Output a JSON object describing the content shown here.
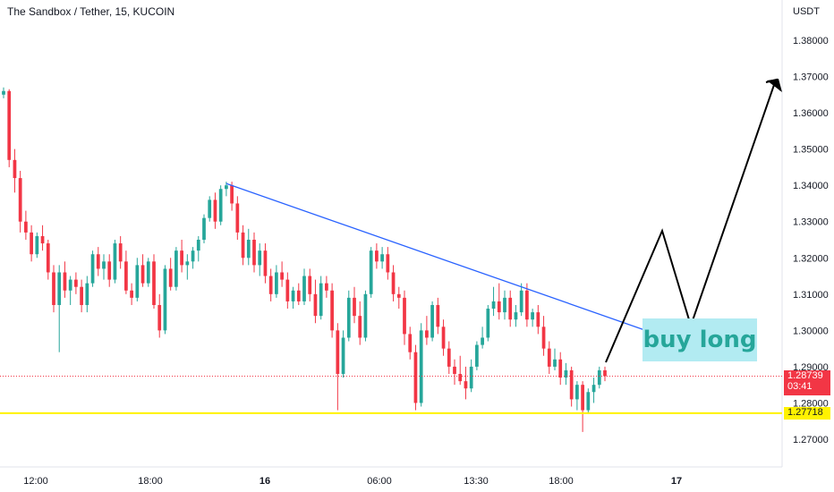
{
  "header": {
    "title": "The Sandbox / Tether, 15, KUCOIN"
  },
  "price_axis": {
    "currency": "USDT",
    "ticks": [
      "1.38000",
      "1.37000",
      "1.36000",
      "1.35000",
      "1.34000",
      "1.33000",
      "1.32000",
      "1.31000",
      "1.30000",
      "1.29000",
      "1.28000",
      "1.27000"
    ]
  },
  "time_axis": {
    "ticks": [
      "12:00",
      "18:00",
      "16",
      "06:00",
      "13:30",
      "18:00",
      "17"
    ]
  },
  "last_price": {
    "value": "1.28739",
    "countdown": "03:41"
  },
  "support_level": {
    "value": "1.27718"
  },
  "annotation": {
    "text": "buy long"
  },
  "colors": {
    "up": "#26a69a",
    "down": "#f23645",
    "trendline": "#2962ff",
    "support": "#fff200",
    "arrow": "#000000",
    "label_bg": "#b2ebf2"
  },
  "chart_data": {
    "type": "candlestick",
    "title": "The Sandbox / Tether, 15, KUCOIN",
    "ylabel": "USDT",
    "ylim": [
      1.265,
      1.389
    ],
    "candles": [
      [
        1.365,
        1.367,
        1.364,
        1.366
      ],
      [
        1.366,
        1.3665,
        1.345,
        1.347
      ],
      [
        1.347,
        1.35,
        1.338,
        1.342
      ],
      [
        1.342,
        1.344,
        1.327,
        1.33
      ],
      [
        1.33,
        1.333,
        1.325,
        1.327
      ],
      [
        1.327,
        1.329,
        1.319,
        1.321
      ],
      [
        1.321,
        1.327,
        1.32,
        1.326
      ],
      [
        1.326,
        1.329,
        1.322,
        1.324
      ],
      [
        1.324,
        1.325,
        1.314,
        1.316
      ],
      [
        1.316,
        1.318,
        1.305,
        1.307
      ],
      [
        1.307,
        1.318,
        1.294,
        1.316
      ],
      [
        1.316,
        1.319,
        1.309,
        1.311
      ],
      [
        1.311,
        1.315,
        1.307,
        1.314
      ],
      [
        1.314,
        1.316,
        1.31,
        1.312
      ],
      [
        1.312,
        1.314,
        1.305,
        1.307
      ],
      [
        1.307,
        1.315,
        1.305,
        1.313
      ],
      [
        1.313,
        1.322,
        1.312,
        1.321
      ],
      [
        1.321,
        1.323,
        1.315,
        1.317
      ],
      [
        1.317,
        1.321,
        1.314,
        1.319
      ],
      [
        1.319,
        1.321,
        1.312,
        1.314
      ],
      [
        1.314,
        1.325,
        1.313,
        1.324
      ],
      [
        1.324,
        1.326,
        1.317,
        1.319
      ],
      [
        1.319,
        1.322,
        1.31,
        1.311
      ],
      [
        1.311,
        1.313,
        1.307,
        1.309
      ],
      [
        1.309,
        1.32,
        1.308,
        1.318
      ],
      [
        1.318,
        1.321,
        1.312,
        1.313
      ],
      [
        1.313,
        1.32,
        1.312,
        1.319
      ],
      [
        1.319,
        1.321,
        1.306,
        1.307
      ],
      [
        1.307,
        1.31,
        1.298,
        1.3
      ],
      [
        1.3,
        1.318,
        1.299,
        1.317
      ],
      [
        1.317,
        1.32,
        1.311,
        1.312
      ],
      [
        1.312,
        1.323,
        1.311,
        1.322
      ],
      [
        1.322,
        1.325,
        1.316,
        1.318
      ],
      [
        1.318,
        1.321,
        1.314,
        1.319
      ],
      [
        1.319,
        1.323,
        1.317,
        1.322
      ],
      [
        1.322,
        1.326,
        1.319,
        1.325
      ],
      [
        1.325,
        1.332,
        1.324,
        1.331
      ],
      [
        1.331,
        1.337,
        1.33,
        1.336
      ],
      [
        1.336,
        1.338,
        1.328,
        1.33
      ],
      [
        1.33,
        1.34,
        1.329,
        1.339
      ],
      [
        1.339,
        1.341,
        1.337,
        1.34
      ],
      [
        1.34,
        1.341,
        1.333,
        1.335
      ],
      [
        1.335,
        1.337,
        1.325,
        1.327
      ],
      [
        1.327,
        1.329,
        1.318,
        1.32
      ],
      [
        1.32,
        1.328,
        1.318,
        1.325
      ],
      [
        1.325,
        1.327,
        1.316,
        1.318
      ],
      [
        1.318,
        1.324,
        1.315,
        1.322
      ],
      [
        1.322,
        1.324,
        1.313,
        1.315
      ],
      [
        1.315,
        1.317,
        1.308,
        1.31
      ],
      [
        1.31,
        1.318,
        1.309,
        1.316
      ],
      [
        1.316,
        1.319,
        1.312,
        1.314
      ],
      [
        1.314,
        1.316,
        1.306,
        1.308
      ],
      [
        1.308,
        1.312,
        1.306,
        1.311
      ],
      [
        1.311,
        1.313,
        1.307,
        1.308
      ],
      [
        1.308,
        1.317,
        1.307,
        1.315
      ],
      [
        1.315,
        1.317,
        1.308,
        1.31
      ],
      [
        1.31,
        1.314,
        1.302,
        1.304
      ],
      [
        1.304,
        1.315,
        1.303,
        1.313
      ],
      [
        1.313,
        1.315,
        1.309,
        1.311
      ],
      [
        1.311,
        1.313,
        1.298,
        1.3
      ],
      [
        1.3,
        1.302,
        1.278,
        1.288
      ],
      [
        1.288,
        1.3,
        1.287,
        1.298
      ],
      [
        1.298,
        1.311,
        1.297,
        1.309
      ],
      [
        1.309,
        1.312,
        1.302,
        1.304
      ],
      [
        1.304,
        1.308,
        1.296,
        1.298
      ],
      [
        1.298,
        1.311,
        1.297,
        1.31
      ],
      [
        1.31,
        1.323,
        1.309,
        1.322
      ],
      [
        1.322,
        1.324,
        1.317,
        1.319
      ],
      [
        1.319,
        1.323,
        1.317,
        1.321
      ],
      [
        1.321,
        1.323,
        1.314,
        1.316
      ],
      [
        1.316,
        1.318,
        1.308,
        1.31
      ],
      [
        1.31,
        1.312,
        1.306,
        1.309
      ],
      [
        1.309,
        1.311,
        1.296,
        1.299
      ],
      [
        1.299,
        1.301,
        1.292,
        1.294
      ],
      [
        1.294,
        1.296,
        1.278,
        1.28
      ],
      [
        1.28,
        1.302,
        1.279,
        1.3
      ],
      [
        1.3,
        1.304,
        1.296,
        1.298
      ],
      [
        1.298,
        1.308,
        1.297,
        1.307
      ],
      [
        1.307,
        1.309,
        1.299,
        1.301
      ],
      [
        1.301,
        1.303,
        1.293,
        1.295
      ],
      [
        1.295,
        1.297,
        1.288,
        1.29
      ],
      [
        1.29,
        1.292,
        1.285,
        1.288
      ],
      [
        1.288,
        1.293,
        1.285,
        1.286
      ],
      [
        1.286,
        1.29,
        1.281,
        1.284
      ],
      [
        1.284,
        1.292,
        1.283,
        1.29
      ],
      [
        1.29,
        1.297,
        1.289,
        1.296
      ],
      [
        1.296,
        1.301,
        1.295,
        1.298
      ],
      [
        1.298,
        1.307,
        1.297,
        1.306
      ],
      [
        1.306,
        1.312,
        1.304,
        1.308
      ],
      [
        1.308,
        1.313,
        1.303,
        1.305
      ],
      [
        1.305,
        1.311,
        1.303,
        1.309
      ],
      [
        1.309,
        1.311,
        1.301,
        1.303
      ],
      [
        1.303,
        1.307,
        1.301,
        1.305
      ],
      [
        1.305,
        1.313,
        1.304,
        1.311
      ],
      [
        1.311,
        1.313,
        1.301,
        1.303
      ],
      [
        1.303,
        1.306,
        1.301,
        1.305
      ],
      [
        1.305,
        1.307,
        1.299,
        1.301
      ],
      [
        1.301,
        1.304,
        1.293,
        1.295
      ],
      [
        1.295,
        1.297,
        1.288,
        1.29
      ],
      [
        1.29,
        1.295,
        1.289,
        1.292
      ],
      [
        1.292,
        1.294,
        1.285,
        1.287
      ],
      [
        1.287,
        1.291,
        1.285,
        1.289
      ],
      [
        1.289,
        1.29,
        1.279,
        1.281
      ],
      [
        1.281,
        1.286,
        1.278,
        1.285
      ],
      [
        1.285,
        1.286,
        1.272,
        1.278
      ],
      [
        1.278,
        1.284,
        1.277,
        1.283
      ],
      [
        1.283,
        1.287,
        1.28,
        1.285
      ],
      [
        1.285,
        1.29,
        1.284,
        1.289
      ],
      [
        1.289,
        1.29,
        1.286,
        1.2874
      ]
    ],
    "trendline": {
      "from": [
        1.3405,
        "candle 40"
      ],
      "to": [
        1.2953,
        "projection"
      ]
    },
    "support_line": 1.27718,
    "last_price_line": 1.28739
  }
}
